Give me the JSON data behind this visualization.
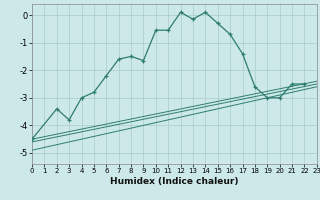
{
  "xlabel": "Humidex (Indice chaleur)",
  "background_color": "#cce8e8",
  "line_color": "#2e7d6e",
  "grid_color": "#aacccc",
  "curve_main": [
    [
      0,
      -4.5
    ],
    [
      2,
      -3.4
    ],
    [
      3,
      -3.8
    ],
    [
      4,
      -3.0
    ],
    [
      5,
      -2.8
    ],
    [
      6,
      -2.2
    ],
    [
      7,
      -1.6
    ],
    [
      8,
      -1.5
    ],
    [
      9,
      -1.65
    ],
    [
      10,
      -0.55
    ],
    [
      11,
      -0.55
    ],
    [
      12,
      0.1
    ],
    [
      13,
      -0.15
    ],
    [
      14,
      0.1
    ],
    [
      15,
      -0.3
    ],
    [
      16,
      -0.7
    ],
    [
      17,
      -1.4
    ],
    [
      18,
      -2.6
    ],
    [
      19,
      -3.0
    ],
    [
      20,
      -3.0
    ],
    [
      21,
      -2.5
    ],
    [
      22,
      -2.5
    ]
  ],
  "line_straight1": [
    [
      0,
      -4.5
    ],
    [
      23,
      -2.4
    ]
  ],
  "line_straight2": [
    [
      0,
      -4.6
    ],
    [
      23,
      -2.5
    ]
  ],
  "line_straight3": [
    [
      0,
      -4.9
    ],
    [
      23,
      -2.6
    ]
  ],
  "ylim": [
    -5.4,
    0.4
  ],
  "xlim": [
    0,
    23
  ],
  "yticks": [
    0,
    -1,
    -2,
    -3,
    -4,
    -5
  ],
  "xticks": [
    0,
    1,
    2,
    3,
    4,
    5,
    6,
    7,
    8,
    9,
    10,
    11,
    12,
    13,
    14,
    15,
    16,
    17,
    18,
    19,
    20,
    21,
    22,
    23
  ]
}
